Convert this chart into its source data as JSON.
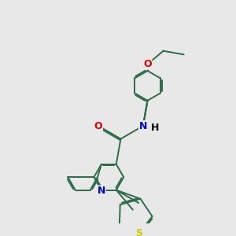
{
  "background_color": "#e8e8e8",
  "bond_color": "#2d6b4a",
  "bond_width": 1.4,
  "dbo": 0.035,
  "atom_colors": {
    "O": "#dd0000",
    "N": "#0000cc",
    "S": "#cccc00",
    "H": "#000000"
  },
  "font_size": 9,
  "figsize": [
    3.0,
    3.0
  ],
  "dpi": 100
}
